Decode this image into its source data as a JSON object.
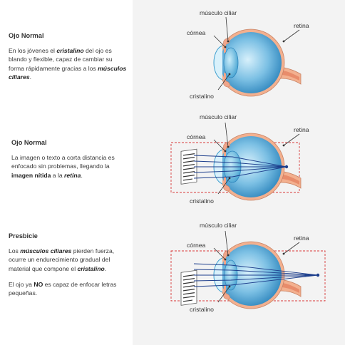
{
  "sections": [
    {
      "title": "Ojo Normal",
      "paragraphs": [
        [
          {
            "t": "En los jóvenes el ",
            "s": ""
          },
          {
            "t": "cristalino",
            "s": "bi"
          },
          {
            "t": " del ojo es blando y flexible, capaz de cambiar su forma rápidamente gracias a los ",
            "s": ""
          },
          {
            "t": "músculos ciliares",
            "s": "bi"
          },
          {
            "t": ".",
            "s": ""
          }
        ]
      ]
    },
    {
      "title": "Ojo Normal",
      "paragraphs": [
        [
          {
            "t": "La imagen o texto a corta distancia es enfocado sin problemas, llegando la ",
            "s": ""
          },
          {
            "t": "imagen nítida",
            "s": "b"
          },
          {
            "t": " a la ",
            "s": ""
          },
          {
            "t": "retina",
            "s": "bi"
          },
          {
            "t": ".",
            "s": ""
          }
        ]
      ]
    },
    {
      "title": "Presbicie",
      "paragraphs": [
        [
          {
            "t": "Los ",
            "s": ""
          },
          {
            "t": "músculos ciliares",
            "s": "bi"
          },
          {
            "t": " pierden fuerza, ocurre un endurecimiento gradual del material que compone el ",
            "s": ""
          },
          {
            "t": "cristalino",
            "s": "bi"
          },
          {
            "t": ".",
            "s": ""
          }
        ],
        [
          {
            "t": "El ojo ya ",
            "s": ""
          },
          {
            "t": "NO",
            "s": "b"
          },
          {
            "t": " es capaz de enfocar letras pequeñas.",
            "s": ""
          }
        ]
      ]
    }
  ],
  "diagram_labels": {
    "muscle": "músculo ciliar",
    "cornea": "córnea",
    "retina": "retina",
    "lens": "cristalino"
  },
  "colors": {
    "eyeball": "#4aa0d0",
    "eyeball_light": "#bfe3f4",
    "sclera": "#f3b08f",
    "lens": "#6fc3e6",
    "ray": "#1d3e8c",
    "box": "#d83a3a"
  }
}
